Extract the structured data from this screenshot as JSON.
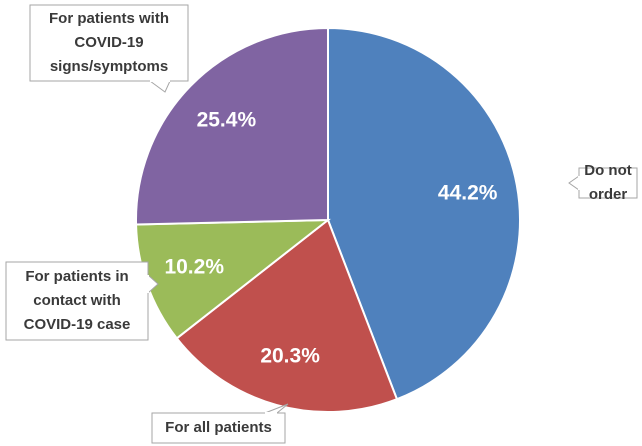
{
  "chart_data": {
    "type": "pie",
    "categories": [
      "Do not order",
      "For all patients",
      "For patients in contact with COVID-19 case",
      "For patients with COVID-19 signs/symptoms"
    ],
    "values": [
      44.2,
      20.3,
      10.2,
      25.4
    ],
    "value_labels": [
      "44.2%",
      "20.3%",
      "10.2%",
      "25.4%"
    ],
    "colors": [
      "#4f81bd",
      "#c0504d",
      "#9bbb59",
      "#8064a2"
    ]
  }
}
